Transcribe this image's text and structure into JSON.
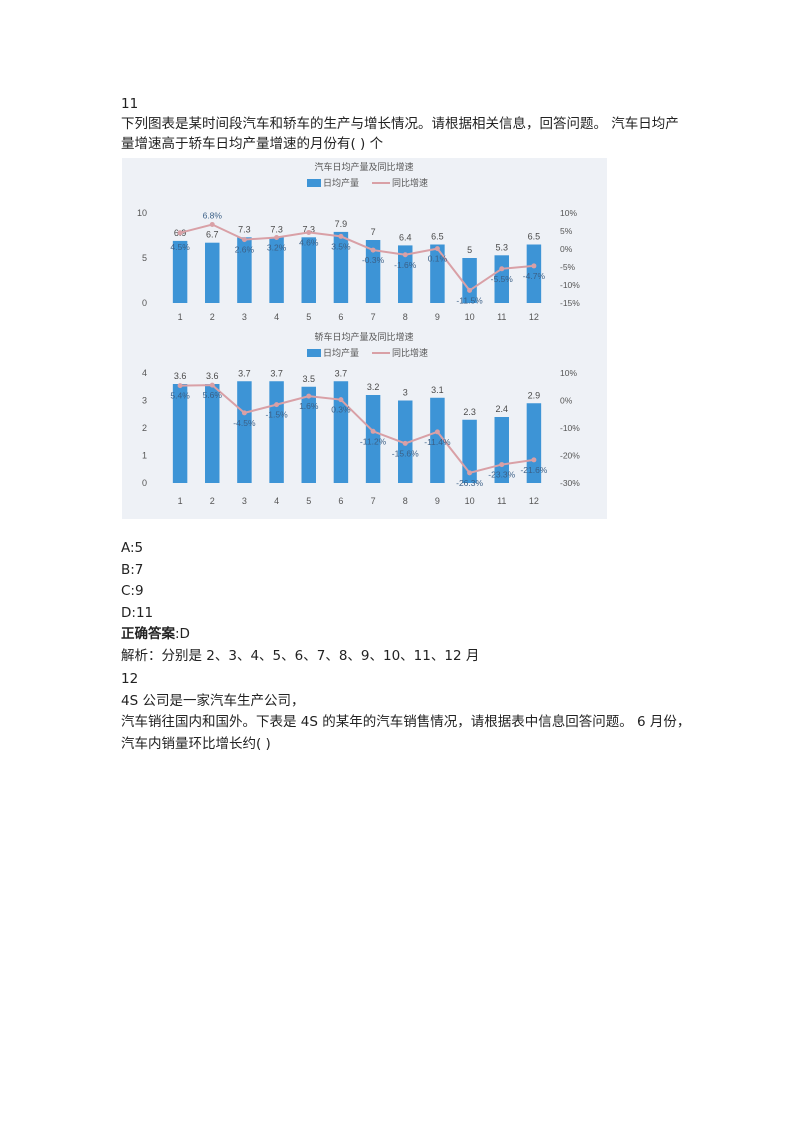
{
  "q1": {
    "number": "11",
    "text": "下列图表是某时间段汽车和轿车的生产与增长情况。请根据相关信息，回答问题。 汽车日均产量增速高于轿车日均产量增速的月份有( ) 个",
    "options": [
      "A:5",
      "B:7",
      "C:9",
      "D:11"
    ],
    "answer_label": "正确答案",
    "answer_value": ":D",
    "analysis": "解析：分别是 2、3、4、5、6、7、8、9、10、11、12 月"
  },
  "q2": {
    "number": "12",
    "line1": "4S 公司是一家汽车生产公司，",
    "line2": "汽车销往国内和国外。下表是 4S 的某年的汽车销售情况，请根据表中信息回答问题。 6 月份，汽车内销量环比增长约( )"
  },
  "colors": {
    "bar": "#3d94d6",
    "line": "#d9a0a6",
    "label": "#4a4a4a"
  },
  "chart_data": [
    {
      "type": "bar+line",
      "title": "汽车日均产量及同比增速",
      "legend": [
        "日均产量",
        "同比增速"
      ],
      "legend_position": "top",
      "categories": [
        "1",
        "2",
        "3",
        "4",
        "5",
        "6",
        "7",
        "8",
        "9",
        "10",
        "11",
        "12"
      ],
      "ylim": [
        0,
        10
      ],
      "yticks": [
        "0",
        "5",
        "10"
      ],
      "y2lim": [
        -15,
        10
      ],
      "y2ticks": [
        "-15%",
        "-10%",
        "-5%",
        "0%",
        "5%",
        "10%"
      ],
      "series": [
        {
          "name": "日均产量",
          "values": [
            6.9,
            6.7,
            7.3,
            7.3,
            7.3,
            7.9,
            7,
            6.4,
            6.5,
            5,
            5.3,
            6.5
          ]
        },
        {
          "name": "同比增速",
          "values": [
            4.5,
            6.8,
            2.6,
            3.2,
            4.6,
            3.5,
            -0.3,
            -1.6,
            0.1,
            -11.5,
            -5.5,
            -4.7
          ]
        }
      ]
    },
    {
      "type": "bar+line",
      "title": "轿车日均产量及同比增速",
      "legend": [
        "日均产量",
        "同比增速"
      ],
      "legend_position": "top",
      "categories": [
        "1",
        "2",
        "3",
        "4",
        "5",
        "6",
        "7",
        "8",
        "9",
        "10",
        "11",
        "12"
      ],
      "ylim": [
        0,
        4
      ],
      "yticks": [
        "0",
        "1",
        "2",
        "3",
        "4"
      ],
      "y2lim": [
        -30,
        10
      ],
      "y2ticks": [
        "-30%",
        "-20%",
        "-10%",
        "0%",
        "10%"
      ],
      "series": [
        {
          "name": "日均产量",
          "values": [
            3.6,
            3.6,
            3.7,
            3.7,
            3.5,
            3.7,
            3.2,
            3,
            3.1,
            2.3,
            2.4,
            2.9
          ]
        },
        {
          "name": "同比增速",
          "values": [
            5.4,
            5.6,
            -4.5,
            -1.5,
            1.6,
            0.3,
            -11.2,
            -15.6,
            -11.4,
            -26.3,
            -23.3,
            -21.6
          ]
        }
      ]
    }
  ]
}
